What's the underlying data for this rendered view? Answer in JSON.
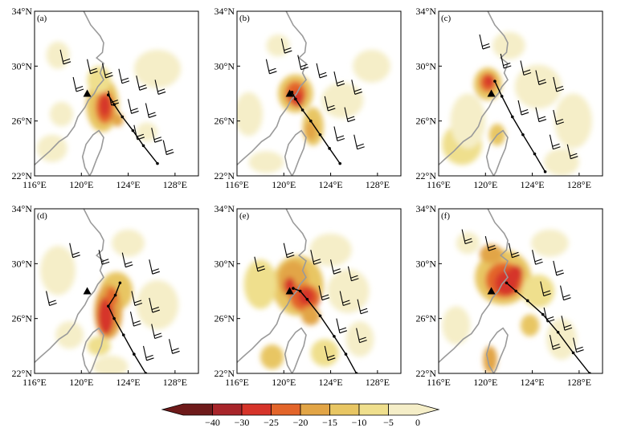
{
  "panels": [
    {
      "id": "a",
      "label": "(a)"
    },
    {
      "id": "b",
      "label": "(b)"
    },
    {
      "id": "c",
      "label": "(c)"
    },
    {
      "id": "d",
      "label": "(d)"
    },
    {
      "id": "e",
      "label": "(e)"
    },
    {
      "id": "f",
      "label": "(f)"
    }
  ],
  "axes": {
    "lat_ticks": [
      "22°N",
      "26°N",
      "30°N",
      "34°N"
    ],
    "lon_ticks": [
      "116°E",
      "120°E",
      "124°E",
      "128°E"
    ],
    "lat_values": [
      22,
      26,
      30,
      34
    ],
    "lon_values": [
      116,
      120,
      124,
      128
    ]
  },
  "colorbar": {
    "ticks": [
      "−40",
      "−30",
      "−25",
      "−20",
      "−15",
      "−10",
      "−5",
      "0"
    ],
    "colors": [
      "#6e1a1a",
      "#a8252a",
      "#d6342a",
      "#e3652a",
      "#e2a546",
      "#e8c663",
      "#efdf8d",
      "#f5eec8"
    ]
  },
  "colors": {
    "land_outline": "#9a9a9a",
    "track": "#000000",
    "wind_barb": "#000000",
    "station_marker": "#000000"
  },
  "station": {
    "lon": 120.5,
    "lat": 28.0
  },
  "typhoon_track": [
    {
      "id": "a",
      "points": [
        [
          126.5,
          22.9
        ],
        [
          125.3,
          24.2
        ],
        [
          124.4,
          25.3
        ],
        [
          123.5,
          26.3
        ],
        [
          122.8,
          27.2
        ],
        [
          122.3,
          27.9
        ]
      ]
    },
    {
      "id": "b",
      "points": [
        [
          124.8,
          22.9
        ],
        [
          123.9,
          24.0
        ],
        [
          123.1,
          25.0
        ],
        [
          122.3,
          26.0
        ],
        [
          121.6,
          26.8
        ],
        [
          121.0,
          27.6
        ],
        [
          120.7,
          28.1
        ]
      ]
    },
    {
      "id": "c",
      "points": [
        [
          125.1,
          22.3
        ],
        [
          124.2,
          23.6
        ],
        [
          123.2,
          25.0
        ],
        [
          122.3,
          26.3
        ],
        [
          121.4,
          27.8
        ],
        [
          120.8,
          28.9
        ]
      ]
    },
    {
      "id": "d",
      "points": [
        [
          125.5,
          22.0
        ],
        [
          124.5,
          23.4
        ],
        [
          123.6,
          24.8
        ],
        [
          122.8,
          26.0
        ],
        [
          122.3,
          26.9
        ],
        [
          122.9,
          27.7
        ],
        [
          123.3,
          28.6
        ]
      ]
    },
    {
      "id": "e",
      "points": [
        [
          126.2,
          22.0
        ],
        [
          125.3,
          23.4
        ],
        [
          124.3,
          24.7
        ],
        [
          123.1,
          26.2
        ],
        [
          122.0,
          27.4
        ],
        [
          121.4,
          28.0
        ],
        [
          120.8,
          28.2
        ]
      ]
    },
    {
      "id": "f",
      "points": [
        [
          128.9,
          22.0
        ],
        [
          127.5,
          23.5
        ],
        [
          126.2,
          25.0
        ],
        [
          124.9,
          26.3
        ],
        [
          123.6,
          27.3
        ],
        [
          122.6,
          28.0
        ],
        [
          121.8,
          28.6
        ]
      ]
    }
  ],
  "shading": [
    {
      "id": "a",
      "blobs": [
        [
          121.8,
          27.2,
          1.4,
          2.0,
          2
        ],
        [
          122.0,
          27.0,
          0.8,
          1.2,
          4
        ],
        [
          122.0,
          27.1,
          0.45,
          0.8,
          5
        ],
        [
          123.1,
          26.1,
          0.5,
          0.5,
          3
        ],
        [
          121.5,
          29.0,
          1.0,
          1.0,
          1
        ],
        [
          118.3,
          26.5,
          1.0,
          0.9,
          0
        ],
        [
          126.5,
          29.8,
          2.0,
          1.4,
          0
        ],
        [
          118.0,
          30.8,
          1.0,
          1.0,
          0
        ],
        [
          125.6,
          25.2,
          0.9,
          0.7,
          0
        ],
        [
          117.5,
          24.0,
          1.3,
          1.0,
          0
        ]
      ]
    },
    {
      "id": "b",
      "blobs": [
        [
          121.0,
          28.0,
          1.5,
          1.4,
          2
        ],
        [
          121.0,
          28.0,
          0.9,
          0.9,
          4
        ],
        [
          121.2,
          27.6,
          0.5,
          0.6,
          5
        ],
        [
          122.5,
          25.6,
          0.9,
          1.4,
          2
        ],
        [
          122.3,
          25.3,
          0.5,
          0.7,
          3
        ],
        [
          117.0,
          26.5,
          1.2,
          1.6,
          0
        ],
        [
          125.0,
          27.5,
          1.8,
          1.3,
          0
        ],
        [
          127.5,
          30.0,
          1.6,
          1.2,
          0
        ],
        [
          118.5,
          23.0,
          1.5,
          0.8,
          0
        ],
        [
          119.5,
          31.5,
          1.0,
          0.8,
          0
        ]
      ]
    },
    {
      "id": "c",
      "blobs": [
        [
          120.2,
          28.7,
          1.2,
          1.2,
          2
        ],
        [
          120.2,
          28.8,
          0.7,
          0.7,
          4
        ],
        [
          120.3,
          28.9,
          0.4,
          0.4,
          5
        ],
        [
          121.0,
          25.0,
          0.7,
          0.8,
          2
        ],
        [
          118.0,
          24.3,
          1.7,
          1.5,
          1
        ],
        [
          118.5,
          26.0,
          1.5,
          2.0,
          0
        ],
        [
          124.5,
          28.5,
          2.0,
          1.6,
          0
        ],
        [
          127.5,
          26.0,
          1.6,
          2.0,
          0
        ],
        [
          122.0,
          31.5,
          1.4,
          1.0,
          0
        ],
        [
          126.5,
          23.0,
          1.5,
          1.0,
          0
        ]
      ]
    },
    {
      "id": "d",
      "blobs": [
        [
          123.0,
          28.0,
          1.4,
          1.4,
          2
        ],
        [
          122.3,
          26.5,
          1.2,
          2.0,
          3
        ],
        [
          122.1,
          26.2,
          0.7,
          1.4,
          5
        ],
        [
          122.6,
          27.6,
          0.5,
          0.7,
          4
        ],
        [
          121.5,
          24.0,
          1.0,
          0.7,
          1
        ],
        [
          118.0,
          29.5,
          1.5,
          1.8,
          0
        ],
        [
          126.5,
          27.0,
          1.8,
          1.8,
          0
        ],
        [
          119.0,
          24.8,
          1.2,
          1.0,
          0
        ],
        [
          124.0,
          31.5,
          1.4,
          1.0,
          0
        ],
        [
          122.5,
          22.5,
          1.5,
          0.8,
          0
        ]
      ]
    },
    {
      "id": "e",
      "blobs": [
        [
          121.2,
          28.4,
          2.2,
          2.2,
          2
        ],
        [
          120.8,
          28.8,
          1.3,
          1.4,
          3
        ],
        [
          121.8,
          27.5,
          1.3,
          1.0,
          4
        ],
        [
          121.9,
          27.6,
          0.7,
          0.6,
          5
        ],
        [
          120.5,
          28.4,
          0.5,
          0.6,
          5
        ],
        [
          122.3,
          26.2,
          0.8,
          0.7,
          3
        ],
        [
          119.0,
          23.2,
          1.0,
          0.9,
          2
        ],
        [
          118.0,
          28.5,
          1.4,
          1.8,
          1
        ],
        [
          125.5,
          28.0,
          1.8,
          1.6,
          0
        ],
        [
          124.0,
          31.0,
          1.8,
          1.2,
          0
        ],
        [
          123.5,
          23.5,
          1.2,
          1.0,
          1
        ],
        [
          126.5,
          24.5,
          1.2,
          1.3,
          0
        ]
      ]
    },
    {
      "id": "f",
      "blobs": [
        [
          121.5,
          29.0,
          2.4,
          2.0,
          2
        ],
        [
          121.6,
          28.8,
          1.6,
          1.3,
          4
        ],
        [
          121.8,
          28.6,
          1.0,
          0.9,
          5
        ],
        [
          122.6,
          29.3,
          0.6,
          0.6,
          5
        ],
        [
          120.4,
          23.0,
          0.6,
          1.0,
          3
        ],
        [
          123.8,
          25.5,
          0.8,
          0.8,
          2
        ],
        [
          120.5,
          30.7,
          1.0,
          0.7,
          3
        ],
        [
          124.5,
          28.0,
          1.4,
          1.2,
          1
        ],
        [
          117.5,
          25.5,
          1.2,
          1.4,
          0
        ],
        [
          126.5,
          24.5,
          1.3,
          1.5,
          0
        ],
        [
          125.5,
          31.5,
          1.6,
          1.0,
          0
        ],
        [
          118.5,
          31.5,
          1.0,
          0.8,
          0
        ]
      ]
    }
  ],
  "wind_barbs": [
    {
      "id": "a",
      "barbs": [
        [
          120.5,
          30.5
        ],
        [
          121.8,
          30.2
        ],
        [
          123.2,
          29.8
        ],
        [
          124.7,
          29.3
        ],
        [
          126.3,
          29.0
        ],
        [
          122.3,
          28.2
        ],
        [
          124.0,
          27.6
        ],
        [
          125.5,
          27.3
        ],
        [
          124.5,
          25.7
        ],
        [
          126.0,
          25.5
        ],
        [
          127.0,
          24.6
        ],
        [
          118.2,
          31.2
        ],
        [
          119.3,
          29.2
        ]
      ]
    },
    {
      "id": "b",
      "barbs": [
        [
          121.2,
          30.8
        ],
        [
          122.8,
          30.2
        ],
        [
          124.3,
          29.6
        ],
        [
          125.8,
          29.0
        ],
        [
          123.5,
          27.8
        ],
        [
          125.2,
          27.0
        ],
        [
          124.3,
          25.6
        ],
        [
          126.0,
          25.0
        ],
        [
          118.5,
          30.5
        ],
        [
          119.8,
          32.0
        ]
      ]
    },
    {
      "id": "c",
      "barbs": [
        [
          121.3,
          30.9
        ],
        [
          123.0,
          30.4
        ],
        [
          124.3,
          29.7
        ],
        [
          125.8,
          29.2
        ],
        [
          122.8,
          27.5
        ],
        [
          124.3,
          27.0
        ],
        [
          125.8,
          26.8
        ],
        [
          125.5,
          25.0
        ],
        [
          127.0,
          24.3
        ],
        [
          119.5,
          32.3
        ]
      ]
    },
    {
      "id": "d",
      "barbs": [
        [
          119.0,
          31.5
        ],
        [
          121.5,
          31.0
        ],
        [
          123.5,
          30.8
        ],
        [
          125.8,
          30.3
        ],
        [
          124.3,
          28.0
        ],
        [
          125.8,
          27.5
        ],
        [
          124.2,
          26.5
        ],
        [
          126.0,
          25.6
        ],
        [
          125.3,
          24.0
        ],
        [
          127.5,
          24.5
        ],
        [
          117.0,
          28.0
        ]
      ]
    },
    {
      "id": "e",
      "barbs": [
        [
          120.0,
          31.5
        ],
        [
          122.3,
          31.0
        ],
        [
          124.0,
          30.3
        ],
        [
          125.5,
          29.8
        ],
        [
          123.0,
          28.4
        ],
        [
          124.8,
          28.0
        ],
        [
          126.3,
          27.4
        ],
        [
          124.5,
          26.0
        ],
        [
          126.2,
          25.3
        ],
        [
          117.5,
          30.5
        ],
        [
          123.5,
          24.0
        ]
      ]
    },
    {
      "id": "f",
      "barbs": [
        [
          120.0,
          32.0
        ],
        [
          122.0,
          31.5
        ],
        [
          124.0,
          31.0
        ],
        [
          125.8,
          30.2
        ],
        [
          124.7,
          28.7
        ],
        [
          126.4,
          28.4
        ],
        [
          125.0,
          26.8
        ],
        [
          126.5,
          26.2
        ],
        [
          125.5,
          24.8
        ],
        [
          127.5,
          24.6
        ],
        [
          118.0,
          32.5
        ]
      ]
    }
  ],
  "coastline": [
    [
      120.2,
      34.0
    ],
    [
      120.8,
      33.0
    ],
    [
      121.6,
      32.2
    ],
    [
      121.9,
      31.7
    ],
    [
      121.8,
      31.0
    ],
    [
      121.3,
      30.6
    ],
    [
      121.9,
      30.2
    ],
    [
      121.6,
      29.5
    ],
    [
      121.9,
      29.0
    ],
    [
      121.4,
      28.5
    ],
    [
      121.1,
      28.0
    ],
    [
      120.6,
      27.5
    ],
    [
      120.3,
      27.0
    ],
    [
      119.7,
      26.3
    ],
    [
      119.4,
      25.6
    ],
    [
      118.8,
      24.9
    ],
    [
      118.1,
      24.5
    ],
    [
      117.3,
      23.8
    ],
    [
      116.5,
      23.2
    ],
    [
      116.0,
      22.8
    ]
  ],
  "taiwan": [
    [
      121.5,
      25.3
    ],
    [
      121.9,
      24.8
    ],
    [
      121.7,
      24.0
    ],
    [
      121.3,
      23.2
    ],
    [
      120.9,
      22.3
    ],
    [
      120.7,
      22.0
    ],
    [
      120.3,
      22.6
    ],
    [
      120.1,
      23.4
    ],
    [
      120.4,
      24.3
    ],
    [
      121.0,
      25.0
    ],
    [
      121.5,
      25.3
    ]
  ]
}
